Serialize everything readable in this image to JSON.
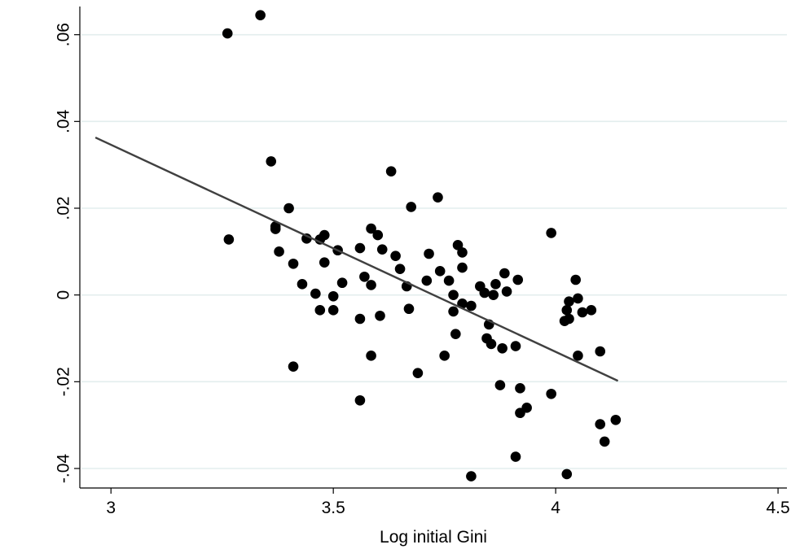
{
  "chart_data": {
    "type": "scatter",
    "title": "",
    "xlabel": "Log initial Gini",
    "ylabel": "",
    "xlim": [
      2.93,
      4.52
    ],
    "ylim": [
      -0.0445,
      0.0665
    ],
    "x_ticks": [
      3,
      3.5,
      4,
      4.5
    ],
    "x_tick_labels": [
      "3",
      "3.5",
      "4",
      "4.5"
    ],
    "y_ticks": [
      -0.04,
      -0.02,
      0,
      0.02,
      0.04,
      0.06
    ],
    "y_tick_labels": [
      "-.04",
      "-.02",
      "0",
      ".02",
      ".04",
      ".06"
    ],
    "grid": "horizontal",
    "points": [
      [
        3.262,
        0.0603
      ],
      [
        3.336,
        0.0645
      ],
      [
        3.265,
        0.0128
      ],
      [
        3.36,
        0.0308
      ],
      [
        3.37,
        0.0152
      ],
      [
        3.37,
        0.0158
      ],
      [
        3.4,
        0.02
      ],
      [
        3.378,
        0.01
      ],
      [
        3.41,
        0.0072
      ],
      [
        3.41,
        -0.0165
      ],
      [
        3.43,
        0.0025
      ],
      [
        3.44,
        0.013
      ],
      [
        3.46,
        0.0003
      ],
      [
        3.47,
        0.0128
      ],
      [
        3.48,
        0.0138
      ],
      [
        3.47,
        -0.0035
      ],
      [
        3.48,
        0.0075
      ],
      [
        3.5,
        -0.0003
      ],
      [
        3.5,
        -0.0035
      ],
      [
        3.51,
        0.0103
      ],
      [
        3.52,
        0.0028
      ],
      [
        3.56,
        -0.0055
      ],
      [
        3.56,
        -0.0243
      ],
      [
        3.56,
        0.0108
      ],
      [
        3.57,
        0.0042
      ],
      [
        3.585,
        0.0023
      ],
      [
        3.585,
        0.0153
      ],
      [
        3.585,
        -0.014
      ],
      [
        3.6,
        0.0138
      ],
      [
        3.61,
        0.0105
      ],
      [
        3.605,
        -0.0048
      ],
      [
        3.63,
        0.0285
      ],
      [
        3.64,
        0.009
      ],
      [
        3.65,
        0.006
      ],
      [
        3.665,
        0.002
      ],
      [
        3.67,
        -0.0032
      ],
      [
        3.675,
        0.0203
      ],
      [
        3.69,
        -0.018
      ],
      [
        3.71,
        0.0033
      ],
      [
        3.715,
        0.0095
      ],
      [
        3.74,
        0.0055
      ],
      [
        3.735,
        0.0225
      ],
      [
        3.75,
        -0.014
      ],
      [
        3.76,
        0.0033
      ],
      [
        3.77,
        0.0
      ],
      [
        3.77,
        -0.0038
      ],
      [
        3.775,
        -0.009
      ],
      [
        3.78,
        0.0115
      ],
      [
        3.79,
        0.0098
      ],
      [
        3.79,
        -0.002
      ],
      [
        3.79,
        0.0063
      ],
      [
        3.81,
        -0.0025
      ],
      [
        3.81,
        -0.0418
      ],
      [
        3.83,
        0.002
      ],
      [
        3.84,
        0.0005
      ],
      [
        3.845,
        -0.01
      ],
      [
        3.85,
        -0.0068
      ],
      [
        3.855,
        -0.0113
      ],
      [
        3.86,
        0.0
      ],
      [
        3.865,
        0.0025
      ],
      [
        3.875,
        -0.0208
      ],
      [
        3.88,
        -0.0123
      ],
      [
        3.885,
        0.005
      ],
      [
        3.89,
        0.0008
      ],
      [
        3.91,
        -0.0118
      ],
      [
        3.91,
        -0.0373
      ],
      [
        3.915,
        0.0035
      ],
      [
        3.92,
        -0.0215
      ],
      [
        3.92,
        -0.0272
      ],
      [
        3.935,
        -0.026
      ],
      [
        3.99,
        -0.0228
      ],
      [
        3.99,
        0.0143
      ],
      [
        4.02,
        -0.006
      ],
      [
        4.025,
        -0.0035
      ],
      [
        4.025,
        -0.0413
      ],
      [
        4.03,
        -0.0015
      ],
      [
        4.03,
        -0.0055
      ],
      [
        4.045,
        0.0035
      ],
      [
        4.05,
        -0.014
      ],
      [
        4.05,
        -0.0008
      ],
      [
        4.06,
        -0.004
      ],
      [
        4.08,
        -0.0035
      ],
      [
        4.1,
        -0.013
      ],
      [
        4.1,
        -0.0298
      ],
      [
        4.11,
        -0.0338
      ],
      [
        4.135,
        -0.0288
      ]
    ],
    "fit_line": {
      "x": [
        2.965,
        4.14
      ],
      "y": [
        0.0363,
        -0.0198
      ]
    }
  }
}
